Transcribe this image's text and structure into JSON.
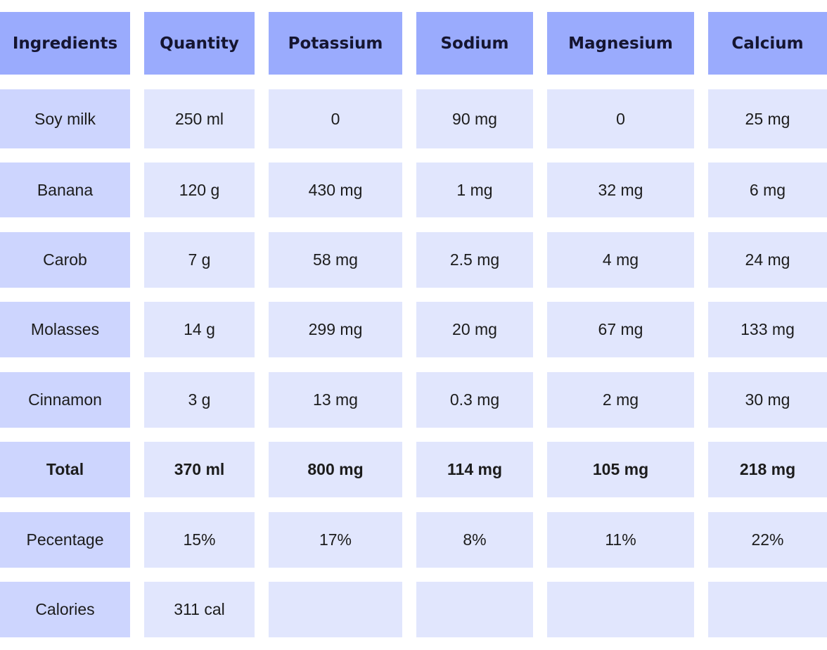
{
  "table": {
    "header": [
      "Ingredients",
      "Quantity",
      "Potassium",
      "Sodium",
      "Magnesium",
      "Calcium"
    ],
    "rows": [
      [
        "Soy milk",
        "250 ml",
        "0",
        "90 mg",
        "0",
        "25 mg"
      ],
      [
        "Banana",
        "120 g",
        "430 mg",
        "1 mg",
        "32 mg",
        "6 mg"
      ],
      [
        "Carob",
        "7 g",
        "58 mg",
        "2.5 mg",
        "4 mg",
        "24 mg"
      ],
      [
        "Molasses",
        "14 g",
        "299 mg",
        "20 mg",
        "67 mg",
        "133 mg"
      ],
      [
        "Cinnamon",
        "3 g",
        "13 mg",
        "0.3 mg",
        "2 mg",
        "30 mg"
      ],
      [
        "Total",
        "370 ml",
        "800 mg",
        "114 mg",
        "105 mg",
        "218 mg"
      ],
      [
        "Pecentage",
        "15%",
        "17%",
        "8%",
        "11%",
        "22%"
      ],
      [
        "Calories",
        "311 cal"
      ]
    ]
  }
}
